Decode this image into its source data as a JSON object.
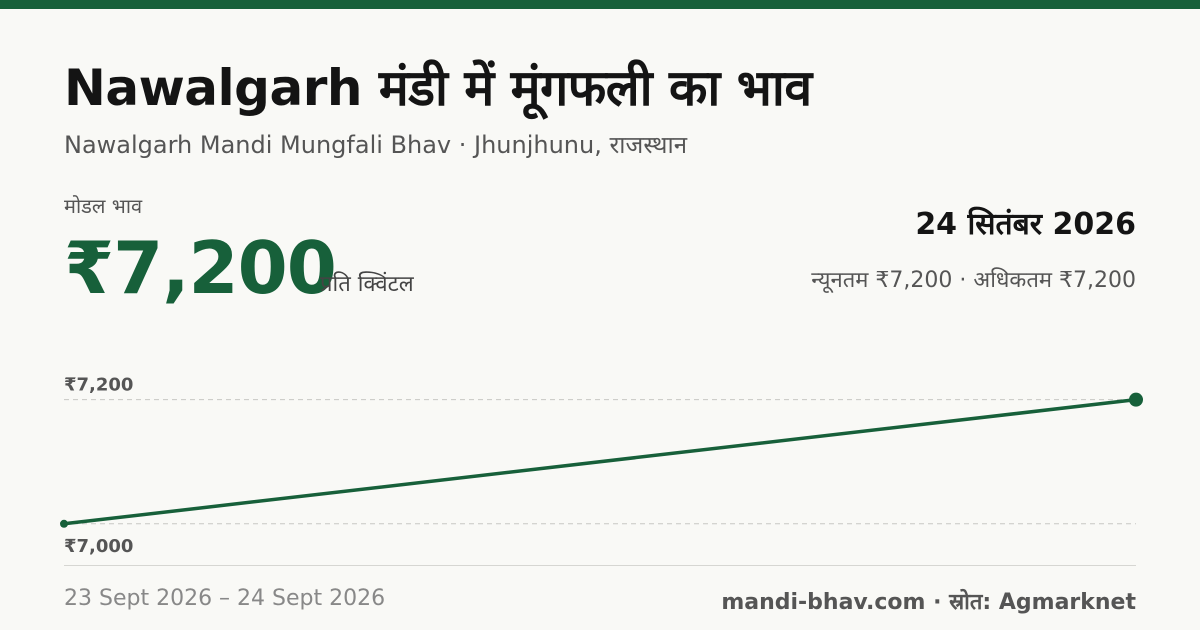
{
  "header": {
    "title": "Nawalgarh मंडी में मूंगफली का भाव",
    "subtitle": "Nawalgarh Mandi Mungfali Bhav · Jhunjhunu, राजस्थान"
  },
  "price": {
    "label": "मोडल भाव",
    "value": "₹7,200",
    "unit": "प्रति क्विंटल"
  },
  "date_panel": {
    "date": "24 सितंबर 2026",
    "range_text": "न्यूनतम ₹7,200 · अधिकतम ₹7,200"
  },
  "chart_data": {
    "type": "line",
    "x": [
      "23 Sept 2026",
      "24 Sept 2026"
    ],
    "series": [
      {
        "values": [
          7000,
          7200
        ]
      }
    ],
    "y_ticks": [
      {
        "value": 7200,
        "label": "₹7,200"
      },
      {
        "value": 7000,
        "label": "₹7,000"
      }
    ],
    "ylim": [
      6990,
      7280
    ],
    "grid": true,
    "colors": {
      "line": "#17603a",
      "grid": "#c8c8c4",
      "tick_text": "#555555"
    }
  },
  "footer": {
    "date_range": "23 Sept 2026 – 24 Sept 2026",
    "source": "mandi-bhav.com · स्रोत: Agmarknet"
  },
  "colors": {
    "accent": "#17603a",
    "background": "#f9f9f6"
  }
}
